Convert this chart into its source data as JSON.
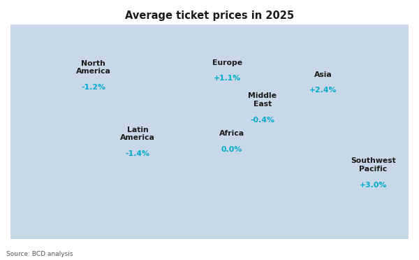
{
  "title": "Average ticket prices in 2025",
  "source": "Source: BCD analysis",
  "background_color": "#ffffff",
  "map_color": "#c8d8e8",
  "map_edge_color": "#ffffff",
  "label_color": "#1a1a1a",
  "value_color": "#00aacc",
  "title_fontsize": 10.5,
  "label_fontsize": 7.8,
  "value_fontsize": 7.8,
  "source_fontsize": 6.5,
  "geo_regions": [
    {
      "name": "North\nAmerica",
      "value": "-1.2%",
      "lon": -105,
      "lat": 48
    },
    {
      "name": "Latin\nAmerica",
      "value": "-1.4%",
      "lon": -65,
      "lat": 3
    },
    {
      "name": "Europe",
      "value": "+1.1%",
      "lon": 16,
      "lat": 54
    },
    {
      "name": "Africa",
      "value": "0.0%",
      "lon": 20,
      "lat": 6
    },
    {
      "name": "Middle\nEast",
      "value": "-0.4%",
      "lon": 48,
      "lat": 26
    },
    {
      "name": "Asia",
      "value": "+2.4%",
      "lon": 103,
      "lat": 46
    },
    {
      "name": "Southwest\nPacific",
      "value": "+3.0%",
      "lon": 148,
      "lat": -18
    }
  ],
  "xlim": [
    -180,
    180
  ],
  "ylim": [
    -60,
    85
  ]
}
